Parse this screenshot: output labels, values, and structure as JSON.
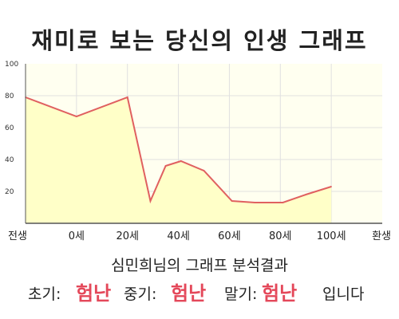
{
  "header": {
    "title": "재미로 보는 당신의 인생 그래프"
  },
  "chart_data": {
    "type": "area",
    "x_tick_labels": [
      "전생",
      "0세",
      "20세",
      "40세",
      "60세",
      "80세",
      "100세",
      "환생"
    ],
    "y_ticks": [
      20,
      40,
      60,
      80,
      100
    ],
    "ylim": [
      0,
      100
    ],
    "grid": true,
    "colors": {
      "line": "#e06060",
      "fill": "#ffffc8",
      "plot_bg": "#fffff0",
      "grid": "#e0e0e0"
    },
    "series": [
      {
        "x": [
          0,
          1,
          2,
          2.45,
          2.75,
          3.05,
          3.5,
          4.05,
          4.5,
          5.05,
          5.5,
          6
        ],
        "values": [
          79,
          67,
          79,
          14,
          36,
          39,
          33,
          14,
          13,
          13,
          18,
          23
        ]
      }
    ]
  },
  "analysis": {
    "subtitle": "심민희님의 그래프 분석결과",
    "early_label": "초기:",
    "early_value": "험난",
    "mid_label": "중기:",
    "mid_value": "험난",
    "late_label": "말기:",
    "late_value": "험난",
    "suffix": "입니다"
  }
}
